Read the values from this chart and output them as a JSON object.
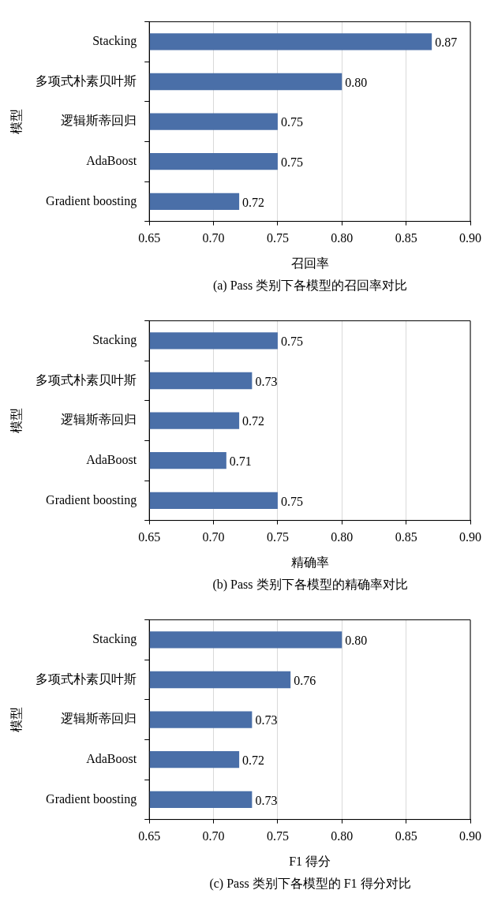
{
  "chart_data": [
    {
      "type": "bar",
      "orientation": "horizontal",
      "categories": [
        "Stacking",
        "多项式朴素贝叶斯",
        "逻辑斯蒂回归",
        "AdaBoost",
        "Gradient boosting"
      ],
      "values": [
        0.87,
        0.8,
        0.75,
        0.75,
        0.72
      ],
      "value_labels": [
        "0.87",
        "0.80",
        "0.75",
        "0.75",
        "0.72"
      ],
      "color": "#4a6fa8",
      "xlim": [
        0.65,
        0.9
      ],
      "xticks": [
        {
          "value": 0.65,
          "label": "0.65"
        },
        {
          "value": 0.7,
          "label": "0.70"
        },
        {
          "value": 0.75,
          "label": "0.75"
        },
        {
          "value": 0.8,
          "label": "0.80"
        },
        {
          "value": 0.85,
          "label": "0.85"
        },
        {
          "value": 0.9,
          "label": "0.90"
        }
      ],
      "xlabel": "召回率",
      "ylabel": "模型",
      "grid": "x",
      "legend": false,
      "annotations": [
        "(a) Pass 类别下各模型的召回率对比"
      ]
    },
    {
      "type": "bar",
      "orientation": "horizontal",
      "categories": [
        "Stacking",
        "多项式朴素贝叶斯",
        "逻辑斯蒂回归",
        "AdaBoost",
        "Gradient boosting"
      ],
      "values": [
        0.75,
        0.73,
        0.72,
        0.71,
        0.75
      ],
      "value_labels": [
        "0.75",
        "0.73",
        "0.72",
        "0.71",
        "0.75"
      ],
      "color": "#4a6fa8",
      "xlim": [
        0.65,
        0.9
      ],
      "xticks": [
        {
          "value": 0.65,
          "label": "0.65"
        },
        {
          "value": 0.7,
          "label": "0.70"
        },
        {
          "value": 0.75,
          "label": "0.75"
        },
        {
          "value": 0.8,
          "label": "0.80"
        },
        {
          "value": 0.85,
          "label": "0.85"
        },
        {
          "value": 0.9,
          "label": "0.90"
        }
      ],
      "xlabel": "精确率",
      "ylabel": "模型",
      "grid": "x",
      "legend": false,
      "annotations": [
        "(b) Pass 类别下各模型的精确率对比"
      ]
    },
    {
      "type": "bar",
      "orientation": "horizontal",
      "categories": [
        "Stacking",
        "多项式朴素贝叶斯",
        "逻辑斯蒂回归",
        "AdaBoost",
        "Gradient boosting"
      ],
      "values": [
        0.8,
        0.76,
        0.73,
        0.72,
        0.73
      ],
      "value_labels": [
        "0.80",
        "0.76",
        "0.73",
        "0.72",
        "0.73"
      ],
      "color": "#4a6fa8",
      "xlim": [
        0.65,
        0.9
      ],
      "xticks": [
        {
          "value": 0.65,
          "label": "0.65"
        },
        {
          "value": 0.7,
          "label": "0.70"
        },
        {
          "value": 0.75,
          "label": "0.75"
        },
        {
          "value": 0.8,
          "label": "0.80"
        },
        {
          "value": 0.85,
          "label": "0.85"
        },
        {
          "value": 0.9,
          "label": "0.90"
        }
      ],
      "xlabel": "F1 得分",
      "ylabel": "模型",
      "grid": "x",
      "legend": false,
      "annotations": [
        "(c) Pass 类别下各模型的 F1 得分对比"
      ]
    }
  ]
}
